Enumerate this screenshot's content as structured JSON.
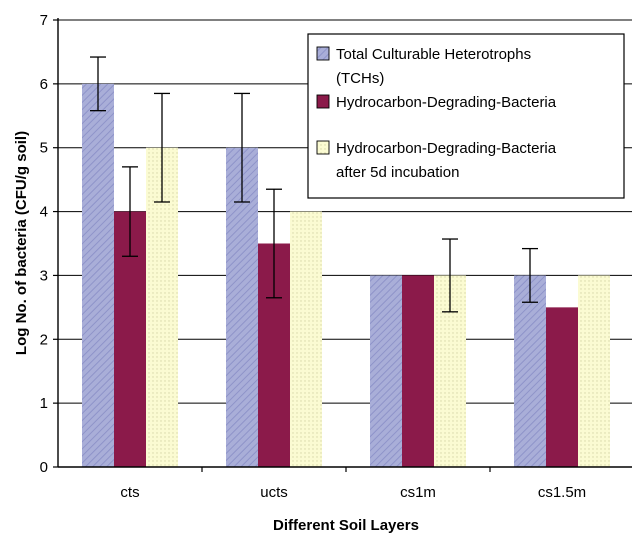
{
  "chart_data": {
    "type": "bar",
    "title": "",
    "xlabel": "Different Soil Layers",
    "ylabel": "Log No. of bacteria (CFU/g soil)",
    "ylim": [
      0,
      7
    ],
    "yticks": [
      "0",
      "1",
      "2",
      "3",
      "4",
      "5",
      "6",
      "7"
    ],
    "grid": "horizontal",
    "legend_position": "top-right",
    "categories": [
      "cts",
      "ucts",
      "cs1m",
      "cs1.5m"
    ],
    "series": [
      {
        "name": "Total Culturable Heterotrophs (TCHs)",
        "legend_lines": [
          "Total Culturable Heterotrophs",
          "(TCHs)"
        ],
        "color": "#a9aed8",
        "pattern": "diagonal-hatch",
        "values": [
          6,
          5,
          3,
          3
        ],
        "error": [
          0.42,
          0.85,
          null,
          0.42
        ]
      },
      {
        "name": "Hydrocarbon-Degrading-Bacteria",
        "legend_lines": [
          "Hydrocarbon-Degrading-Bacteria"
        ],
        "color": "#8b1a4a",
        "pattern": "solid",
        "values": [
          4,
          3.5,
          3,
          2.5
        ],
        "error": [
          0.7,
          0.85,
          null,
          null
        ]
      },
      {
        "name": "Hydrocarbon-Degrading-Bacteria after 5d incubation",
        "legend_lines": [
          "Hydrocarbon-Degrading-Bacteria",
          "after 5d incubation"
        ],
        "color": "#fbfbd2",
        "pattern": "dotted",
        "values": [
          5,
          4,
          3,
          3
        ],
        "error": [
          0.85,
          null,
          0.57,
          null
        ]
      }
    ]
  }
}
